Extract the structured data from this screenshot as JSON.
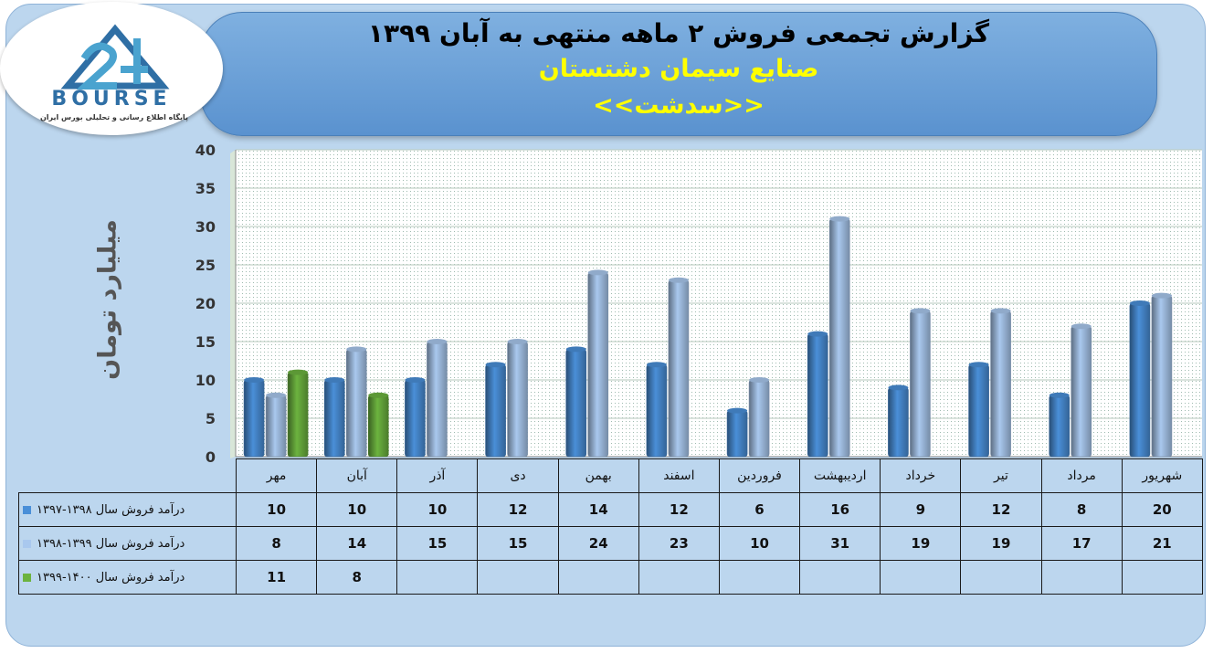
{
  "header": {
    "title": "گزارش تجمعی فروش ۲ ماهه منتهی به آبان ۱۳۹۹",
    "company": "صنایع سیمان دشتستان",
    "symbol": "<<سدشت>>"
  },
  "logo": {
    "text": "BOURSE",
    "subtitle": "پایگاه اطلاع رسانی و تحلیلی بورس ایران",
    "icon": "24-bourse-logo-icon"
  },
  "chart_data": {
    "type": "bar",
    "title": "گزارش تجمعی فروش ۲ ماهه منتهی به آبان ۱۳۹۹",
    "ylabel": "میلیارد تومان",
    "xlabel": "",
    "ylim": [
      0,
      40
    ],
    "yticks": [
      0,
      5,
      10,
      15,
      20,
      25,
      30,
      35,
      40
    ],
    "grid": true,
    "categories": [
      "مهر",
      "آبان",
      "آذر",
      "دی",
      "بهمن",
      "اسفند",
      "فروردین",
      "اردیبهشت",
      "خرداد",
      "تیر",
      "مرداد",
      "شهریور"
    ],
    "series": [
      {
        "name": "درآمد فروش سال ۱۳۹۸-۱۳۹۷",
        "color": "#4a8fd8",
        "values": [
          10,
          10,
          10,
          12,
          14,
          12,
          6,
          16,
          9,
          12,
          8,
          20
        ]
      },
      {
        "name": "درآمد فروش سال ۱۳۹۹-۱۳۹۸",
        "color": "#a9c8ee",
        "values": [
          8,
          14,
          15,
          15,
          24,
          23,
          10,
          31,
          19,
          19,
          17,
          21
        ]
      },
      {
        "name": "درآمد فروش سال ۱۴۰۰-۱۳۹۹",
        "color": "#6cb33f",
        "values": [
          11,
          8,
          null,
          null,
          null,
          null,
          null,
          null,
          null,
          null,
          null,
          null
        ]
      }
    ]
  }
}
